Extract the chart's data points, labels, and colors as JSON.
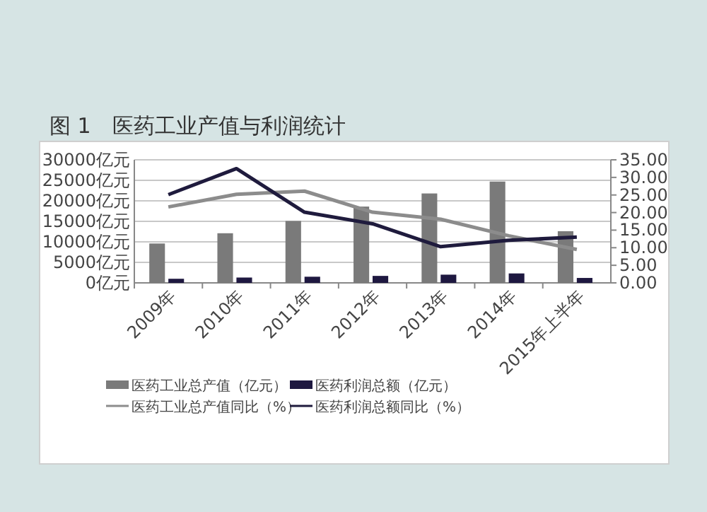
{
  "chart_data": {
    "type": "bar",
    "title": "图 1　医药工业产值与利润统计",
    "categories": [
      "2009年",
      "2010年",
      "2011年",
      "2012年",
      "2013年",
      "2014年",
      "2015年上半年"
    ],
    "series": [
      {
        "name": "医药工业总产值（亿元）",
        "color": "#7a7a7a",
        "values": [
          9600,
          12100,
          15100,
          18600,
          21800,
          24700,
          12600
        ]
      },
      {
        "name": "医药利润总额（亿元）",
        "color": "#1e1840",
        "values": [
          1000,
          1300,
          1500,
          1700,
          2000,
          2300,
          1200
        ]
      },
      {
        "name": "医药工业总产值同比（%）",
        "type": "line",
        "axis": "y2",
        "color": "#8c8c8c",
        "values": [
          21.6,
          25.2,
          26.1,
          20.1,
          18.1,
          13.4,
          9.5
        ]
      },
      {
        "name": "医药利润总额同比（%）",
        "type": "line",
        "axis": "y2",
        "color": "#1f1b3d",
        "values": [
          25.1,
          32.5,
          20.1,
          16.8,
          10.3,
          12.1,
          13.0
        ]
      }
    ],
    "ylim": [
      0,
      30000
    ],
    "yticks": [
      {
        "value": 0,
        "label": "0亿元"
      },
      {
        "value": 5000,
        "label": "5000亿元"
      },
      {
        "value": 10000,
        "label": "10000亿元"
      },
      {
        "value": 15000,
        "label": "15000亿元"
      },
      {
        "value": 20000,
        "label": "20000亿元"
      },
      {
        "value": 25000,
        "label": "25000亿元"
      },
      {
        "value": 30000,
        "label": "30000亿元"
      }
    ],
    "y2lim": [
      0,
      35
    ],
    "y2ticks": [
      {
        "value": 0,
        "label": "0.00"
      },
      {
        "value": 5,
        "label": "5.00"
      },
      {
        "value": 10,
        "label": "10.00"
      },
      {
        "value": 15,
        "label": "15.00"
      },
      {
        "value": 20,
        "label": "20.00"
      },
      {
        "value": 25,
        "label": "25.00"
      },
      {
        "value": 30,
        "label": "30.00"
      },
      {
        "value": 35,
        "label": "35.00"
      }
    ],
    "grid": "y",
    "legend": "bottom",
    "marker": "none"
  }
}
